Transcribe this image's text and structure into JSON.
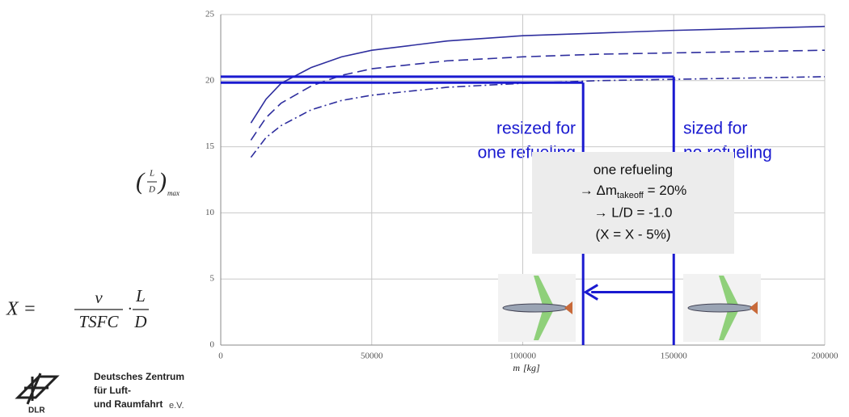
{
  "chart_data": {
    "type": "line",
    "x": [
      10000,
      15000,
      20000,
      30000,
      40000,
      50000,
      75000,
      100000,
      125000,
      150000,
      175000,
      200000
    ],
    "series": [
      {
        "color": "#2e2e9e",
        "dash": "solid",
        "values": [
          16.8,
          18.6,
          19.8,
          21.0,
          21.8,
          22.3,
          23.0,
          23.4,
          23.6,
          23.8,
          23.95,
          24.1
        ]
      },
      {
        "color": "#2e2e9e",
        "dash": "dashed",
        "values": [
          15.5,
          17.2,
          18.3,
          19.6,
          20.4,
          20.9,
          21.5,
          21.8,
          22.0,
          22.1,
          22.2,
          22.3
        ]
      },
      {
        "color": "#2e2e9e",
        "dash": "dashdot",
        "values": [
          14.2,
          15.7,
          16.6,
          17.8,
          18.5,
          18.9,
          19.5,
          19.8,
          20.0,
          20.1,
          20.2,
          20.3
        ]
      }
    ],
    "xlim": [
      0,
      200000
    ],
    "ylim": [
      0,
      25
    ],
    "xticks": [
      0,
      50000,
      100000,
      150000,
      200000
    ],
    "yticks": [
      0,
      5,
      10,
      15,
      20,
      25
    ],
    "grid": true,
    "xlabel": {
      "var": "m",
      "unit": "[kg]"
    },
    "ylabel": {
      "num": "L",
      "den": "D",
      "sub": "max"
    },
    "reference_lines": [
      {
        "x": 150000,
        "y": 20.3,
        "color": "#1a1ad0"
      },
      {
        "x": 120000,
        "y": 19.85,
        "color": "#1a1ad0"
      }
    ],
    "annotations": {
      "resized": [
        "resized for",
        "one refueling"
      ],
      "sized": [
        "sized for",
        "no refueling"
      ],
      "box": {
        "line1": "one refueling",
        "line2a": "→ Δm",
        "line2sub": "takeoff",
        "line2b": " = 20%",
        "line3": "→ L/D = -1.0",
        "line4": "(X = X - 5%)"
      }
    }
  },
  "formula": {
    "lhs": "X =",
    "num1": "v",
    "den1": "TSFC",
    "dot": "·",
    "num2": "L",
    "den2": "D"
  },
  "logo": {
    "mark": "DLR",
    "lines": [
      "Deutsches Zentrum",
      "für Luft-",
      "und Raumfahrt"
    ],
    "suffix": "e.V."
  }
}
